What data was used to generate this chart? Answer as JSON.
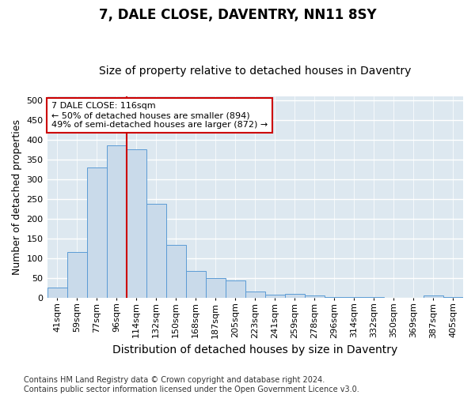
{
  "title": "7, DALE CLOSE, DAVENTRY, NN11 8SY",
  "subtitle": "Size of property relative to detached houses in Daventry",
  "xlabel": "Distribution of detached houses by size in Daventry",
  "ylabel": "Number of detached properties",
  "categories": [
    "41sqm",
    "59sqm",
    "77sqm",
    "96sqm",
    "114sqm",
    "132sqm",
    "150sqm",
    "168sqm",
    "187sqm",
    "205sqm",
    "223sqm",
    "241sqm",
    "259sqm",
    "278sqm",
    "296sqm",
    "314sqm",
    "332sqm",
    "350sqm",
    "369sqm",
    "387sqm",
    "405sqm"
  ],
  "values": [
    26,
    116,
    330,
    385,
    375,
    238,
    133,
    68,
    50,
    43,
    15,
    8,
    10,
    5,
    1,
    1,
    1,
    0,
    0,
    6,
    1
  ],
  "bar_color": "#c9daea",
  "bar_edge_color": "#5b9bd5",
  "background_color": "#dde8f0",
  "grid_color": "#ffffff",
  "vline_color": "#cc0000",
  "annotation_box_color": "#cc0000",
  "ylim": [
    0,
    510
  ],
  "yticks": [
    0,
    50,
    100,
    150,
    200,
    250,
    300,
    350,
    400,
    450,
    500
  ],
  "footer": "Contains HM Land Registry data © Crown copyright and database right 2024.\nContains public sector information licensed under the Open Government Licence v3.0.",
  "title_fontsize": 12,
  "subtitle_fontsize": 10,
  "axis_label_fontsize": 9,
  "tick_fontsize": 8,
  "annotation_fontsize": 8,
  "footer_fontsize": 7
}
